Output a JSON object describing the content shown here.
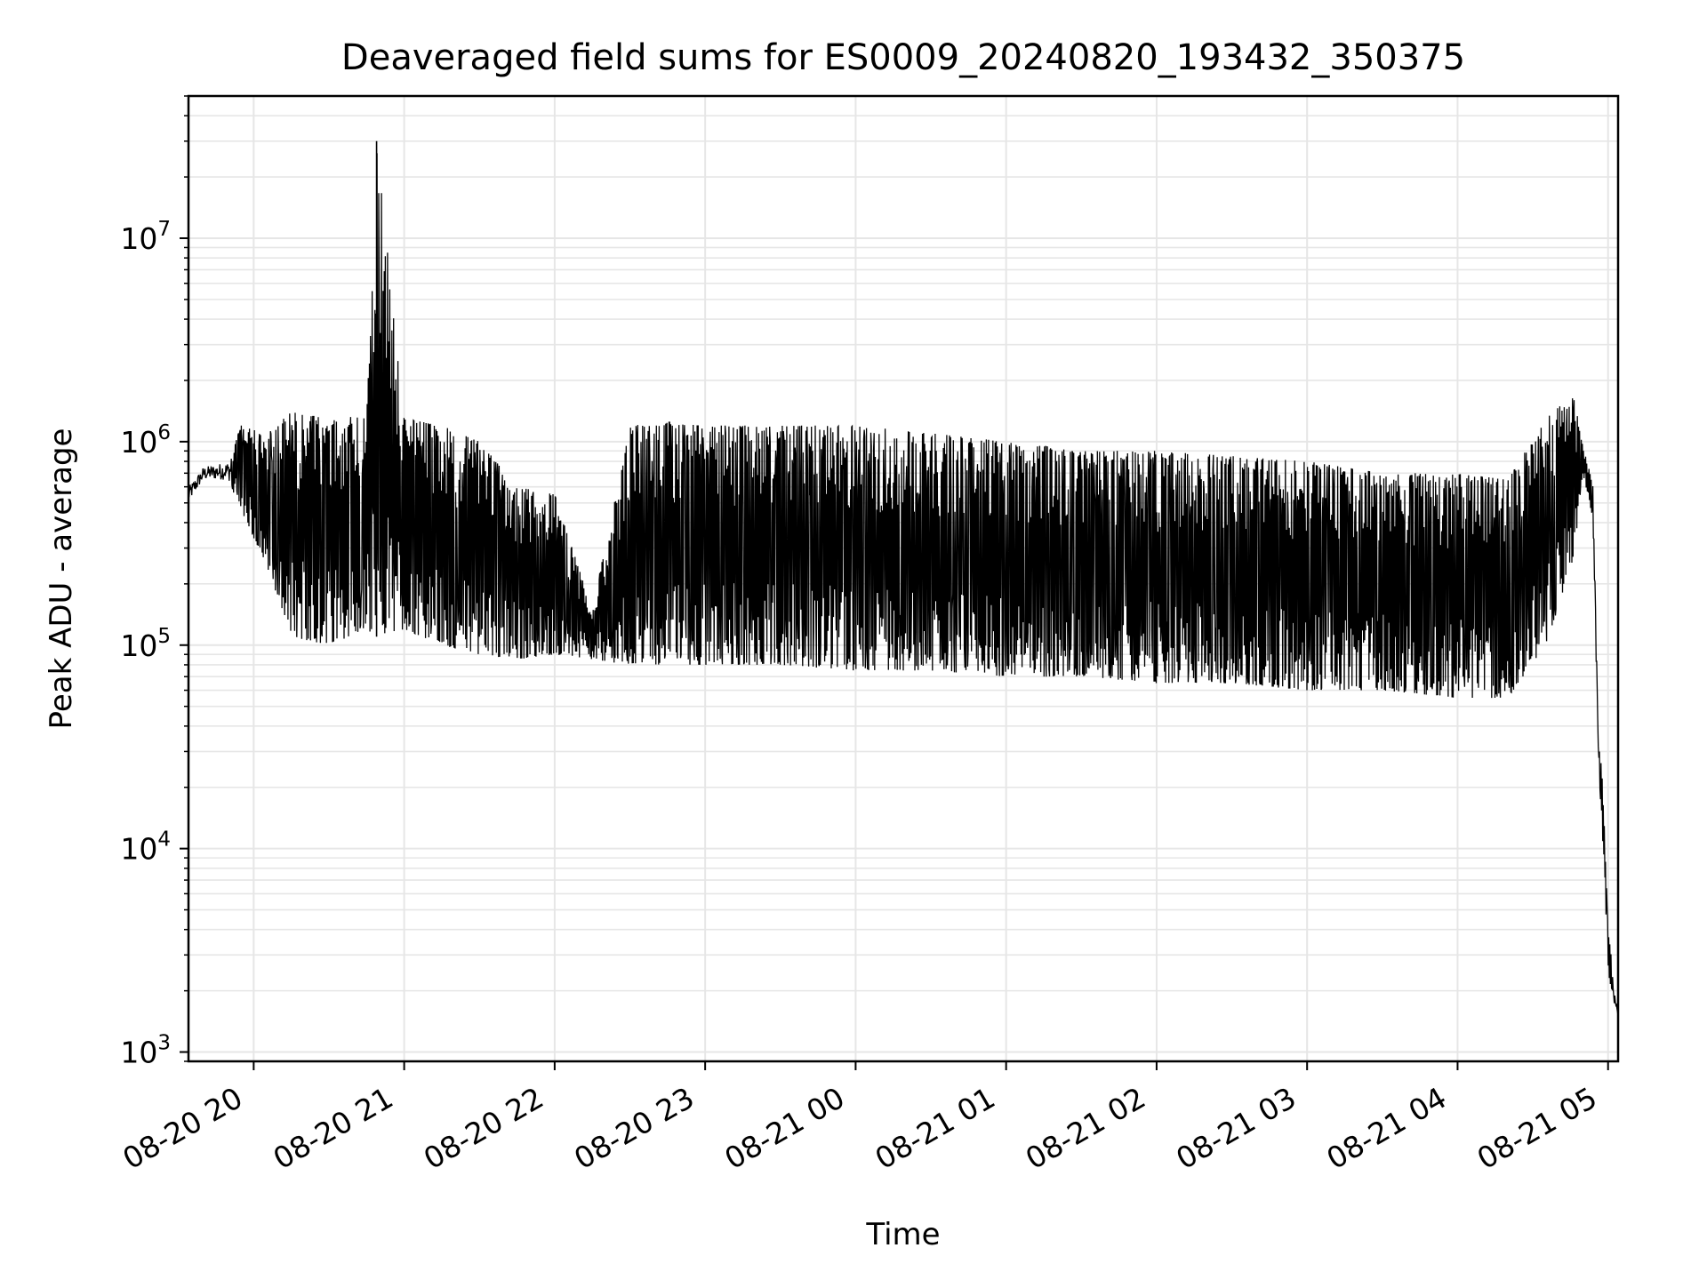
{
  "chart_data": {
    "type": "line",
    "title": "Deaveraged field sums for ES0009_20240820_193432_350375",
    "xlabel": "Time",
    "ylabel": "Peak ADU - average",
    "yscale": "log",
    "ylim": [
      900,
      50000000
    ],
    "xlim": [
      "2024-08-20 19:34",
      "2024-08-21 05:04"
    ],
    "grid": true,
    "grid_color": "#e6e6e6",
    "line_color": "#000000",
    "x_ticks": [
      {
        "value": "2024-08-20 20:00",
        "label": "08-20 20"
      },
      {
        "value": "2024-08-20 21:00",
        "label": "08-20 21"
      },
      {
        "value": "2024-08-20 22:00",
        "label": "08-20 22"
      },
      {
        "value": "2024-08-20 23:00",
        "label": "08-20 23"
      },
      {
        "value": "2024-08-21 00:00",
        "label": "08-21 00"
      },
      {
        "value": "2024-08-21 01:00",
        "label": "08-21 01"
      },
      {
        "value": "2024-08-21 02:00",
        "label": "08-21 02"
      },
      {
        "value": "2024-08-21 03:00",
        "label": "08-21 03"
      },
      {
        "value": "2024-08-21 04:00",
        "label": "08-21 04"
      },
      {
        "value": "2024-08-21 05:00",
        "label": "08-21 05"
      }
    ],
    "y_ticks": [
      {
        "value": 1000,
        "base": "10",
        "exp": "3"
      },
      {
        "value": 10000,
        "base": "10",
        "exp": "4"
      },
      {
        "value": 100000,
        "base": "10",
        "exp": "5"
      },
      {
        "value": 1000000,
        "base": "10",
        "exp": "6"
      },
      {
        "value": 10000000,
        "base": "10",
        "exp": "7"
      }
    ],
    "series": [
      {
        "x": [
          "2024-08-20 19:34",
          "2024-08-20 19:40",
          "2024-08-20 19:50",
          "2024-08-20 19:55",
          "2024-08-20 20:05",
          "2024-08-20 20:15",
          "2024-08-20 20:30",
          "2024-08-20 20:45",
          "2024-08-20 20:49",
          "2024-08-20 21:00",
          "2024-08-20 21:15",
          "2024-08-20 21:30",
          "2024-08-20 21:45",
          "2024-08-20 22:00",
          "2024-08-20 22:15",
          "2024-08-20 22:30",
          "2024-08-20 22:45",
          "2024-08-20 23:00",
          "2024-08-20 23:30",
          "2024-08-21 00:00",
          "2024-08-21 00:30",
          "2024-08-21 01:00",
          "2024-08-21 01:30",
          "2024-08-21 02:00",
          "2024-08-21 02:30",
          "2024-08-21 03:00",
          "2024-08-21 03:30",
          "2024-08-21 04:00",
          "2024-08-21 04:20",
          "2024-08-21 04:35",
          "2024-08-21 04:46",
          "2024-08-21 04:50",
          "2024-08-21 04:54",
          "2024-08-21 04:56",
          "2024-08-21 04:58",
          "2024-08-21 05:00",
          "2024-08-21 05:02",
          "2024-08-21 05:04"
        ],
        "upper": [
          600000,
          750000,
          800000,
          1200000,
          1100000,
          1400000,
          1300000,
          1350000,
          30000000,
          1300000,
          1200000,
          1000000,
          600000,
          550000,
          150000,
          1200000,
          1250000,
          1200000,
          1200000,
          1200000,
          1100000,
          1000000,
          900000,
          900000,
          850000,
          800000,
          700000,
          700000,
          650000,
          1300000,
          1700000,
          1000000,
          600000,
          40000,
          20000,
          4000,
          2500,
          1500
        ],
        "lower": [
          500000,
          650000,
          650000,
          450000,
          250000,
          110000,
          100000,
          120000,
          110000,
          120000,
          100000,
          90000,
          85000,
          90000,
          85000,
          80000,
          80000,
          80000,
          80000,
          75000,
          75000,
          70000,
          70000,
          65000,
          65000,
          60000,
          60000,
          55000,
          55000,
          100000,
          250000,
          700000,
          400000,
          30000,
          10000,
          2500,
          1800,
          1500
        ]
      }
    ]
  }
}
